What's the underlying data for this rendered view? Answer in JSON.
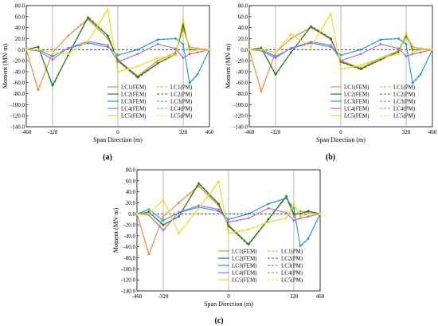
{
  "figure": {
    "xlabel": "Span Direction (m)",
    "ylabel": "Moment (MN·m)",
    "x_ticks": [
      "-460",
      "-328",
      "0",
      "328",
      "460"
    ],
    "y_ticks": [
      "80.0",
      "60.0",
      "40.0",
      "20.0",
      "0.0",
      "-20.0",
      "-40.0",
      "-60.0",
      "-80.0",
      "-100.0",
      "-120.0",
      "-140.0"
    ],
    "legend": [
      {
        "fem": "LC1(FEM)",
        "pm": "LC1(PM)",
        "color": "#f28c3b"
      },
      {
        "fem": "LC2(FEM)",
        "pm": "LC2(PM)",
        "color": "#1f7a1f"
      },
      {
        "fem": "LC3(FEM)",
        "pm": "LC3(PM)",
        "color": "#1f9be0"
      },
      {
        "fem": "LC4(FEM)",
        "pm": "LC4(PM)",
        "color": "#b266e0"
      },
      {
        "fem": "LC5(FEM)",
        "pm": "LC5(PM)",
        "color": "#e6e01e"
      }
    ],
    "colors": {
      "lc1": "#f28c3b",
      "lc2": "#1f7a1f",
      "lc3": "#1f9be0",
      "lc4": "#b266e0",
      "lc5": "#e6e01e",
      "dash_line": "#000000"
    }
  },
  "chart_data": [
    {
      "panel_label": "(a)",
      "type": "line",
      "xlabel": "Span Direction (m)",
      "ylabel": "Moment (MN·m)",
      "xlim": [
        -460,
        460
      ],
      "ylim": [
        -140,
        80
      ],
      "x": [
        -460,
        -400,
        -328,
        -250,
        -150,
        -50,
        0,
        100,
        200,
        290,
        328,
        360,
        400,
        460
      ],
      "series": [
        {
          "name": "LC1(FEM)",
          "values": [
            0,
            -73,
            -5,
            25,
            55,
            20,
            -18,
            -48,
            -20,
            -5,
            38,
            5,
            2,
            0
          ]
        },
        {
          "name": "LC2(FEM)",
          "values": [
            0,
            5,
            -65,
            -10,
            58,
            25,
            -20,
            -50,
            -25,
            -8,
            45,
            0,
            0,
            0
          ]
        },
        {
          "name": "LC3(FEM)",
          "values": [
            0,
            0,
            -12,
            2,
            12,
            5,
            -10,
            0,
            18,
            20,
            10,
            -60,
            -45,
            0
          ]
        },
        {
          "name": "LC4(FEM)",
          "values": [
            0,
            -2,
            -18,
            3,
            15,
            8,
            -22,
            -8,
            10,
            2,
            -15,
            -8,
            -5,
            0
          ]
        },
        {
          "name": "LC5(FEM)",
          "values": [
            0,
            0,
            -5,
            -8,
            15,
            72,
            -40,
            -30,
            -15,
            -10,
            55,
            -5,
            0,
            0
          ]
        }
      ]
    },
    {
      "panel_label": "(b)",
      "type": "line",
      "xlabel": "Span Direction (m)",
      "ylabel": "Moment (MN·m)",
      "xlim": [
        -460,
        460
      ],
      "ylim": [
        -140,
        80
      ],
      "x": [
        -460,
        -400,
        -328,
        -250,
        -150,
        -50,
        0,
        100,
        200,
        290,
        328,
        360,
        400,
        460
      ],
      "series": [
        {
          "name": "LC1(FEM)",
          "values": [
            0,
            -75,
            -5,
            20,
            40,
            18,
            -20,
            -33,
            -15,
            -2,
            28,
            5,
            2,
            0
          ]
        },
        {
          "name": "LC2(FEM)",
          "values": [
            0,
            3,
            -45,
            -5,
            42,
            20,
            -22,
            -35,
            -18,
            -4,
            25,
            0,
            0,
            0
          ]
        },
        {
          "name": "LC3(FEM)",
          "values": [
            0,
            0,
            -12,
            2,
            12,
            5,
            -10,
            0,
            18,
            20,
            10,
            -60,
            -45,
            0
          ]
        },
        {
          "name": "LC4(FEM)",
          "values": [
            0,
            -2,
            -15,
            3,
            14,
            8,
            -20,
            -8,
            10,
            2,
            -12,
            -8,
            -5,
            0
          ]
        },
        {
          "name": "LC5(FEM)",
          "values": [
            0,
            0,
            -5,
            28,
            5,
            65,
            -35,
            -28,
            -15,
            -8,
            30,
            -5,
            0,
            0
          ]
        }
      ]
    },
    {
      "panel_label": "(c)",
      "type": "line",
      "xlabel": "Span Direction (m)",
      "ylabel": "Moment (MN·m)",
      "xlim": [
        -460,
        460
      ],
      "ylim": [
        -140,
        80
      ],
      "x": [
        -460,
        -400,
        -328,
        -250,
        -150,
        -50,
        0,
        100,
        200,
        290,
        328,
        360,
        400,
        460
      ],
      "series": [
        {
          "name": "LC1(FEM)",
          "values": [
            0,
            -73,
            -5,
            20,
            50,
            15,
            -20,
            -55,
            -10,
            30,
            -5,
            5,
            2,
            0
          ]
        },
        {
          "name": "LC2(FEM)",
          "values": [
            0,
            3,
            -20,
            -5,
            55,
            18,
            -22,
            -55,
            -10,
            32,
            0,
            0,
            5,
            0
          ]
        },
        {
          "name": "LC3(FEM)",
          "values": [
            0,
            8,
            -12,
            2,
            12,
            5,
            -10,
            0,
            18,
            28,
            10,
            -58,
            -45,
            0
          ]
        },
        {
          "name": "LC4(FEM)",
          "values": [
            0,
            -2,
            -30,
            3,
            15,
            8,
            -15,
            -8,
            10,
            2,
            -12,
            -8,
            -5,
            0
          ]
        },
        {
          "name": "LC5(FEM)",
          "values": [
            0,
            0,
            25,
            -35,
            10,
            58,
            -35,
            -28,
            -15,
            -8,
            18,
            -5,
            0,
            0
          ]
        }
      ]
    }
  ]
}
